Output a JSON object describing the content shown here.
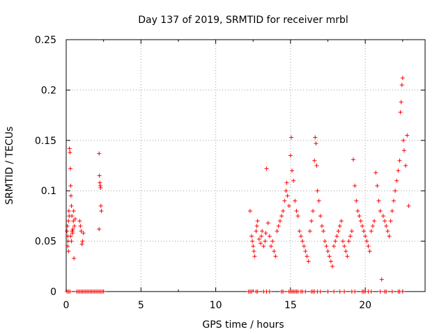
{
  "chart_data": {
    "type": "scatter",
    "title": "Day 137 of 2019, SRMTID for receiver mrbl",
    "xlabel": "GPS time / hours",
    "ylabel": "SRMTID / TECUs",
    "xlim": [
      0,
      24
    ],
    "ylim": [
      0,
      0.25
    ],
    "xticks": [
      0,
      5,
      10,
      15,
      20
    ],
    "yticks": [
      0,
      0.05,
      0.1,
      0.15,
      0.2,
      0.25
    ],
    "x_tick_labels": [
      "0",
      "5",
      "10",
      "15",
      "20"
    ],
    "y_tick_labels": [
      "0",
      "0.05",
      "0.1",
      "0.15",
      "0.2",
      "0.25"
    ],
    "grid": true,
    "marker": "+",
    "series": [
      {
        "name": "SRMTID",
        "color": "#ff0000",
        "points": [
          [
            0.05,
            0.06
          ],
          [
            0.08,
            0.065
          ],
          [
            0.1,
            0.055
          ],
          [
            0.12,
            0.05
          ],
          [
            0.15,
            0.07
          ],
          [
            0.18,
            0.08
          ],
          [
            0.2,
            0.075
          ],
          [
            0.22,
            0.142
          ],
          [
            0.25,
            0.138
          ],
          [
            0.28,
            0.122
          ],
          [
            0.3,
            0.105
          ],
          [
            0.32,
            0.095
          ],
          [
            0.35,
            0.085
          ],
          [
            0.38,
            0.075
          ],
          [
            0.4,
            0.06
          ],
          [
            0.42,
            0.058
          ],
          [
            0.45,
            0.062
          ],
          [
            0.48,
            0.07
          ],
          [
            0.5,
            0.08
          ],
          [
            0.52,
            0.033
          ],
          [
            0.55,
            0.065
          ],
          [
            0.6,
            0.072
          ],
          [
            0.1,
            0.045
          ],
          [
            0.15,
            0.04
          ],
          [
            0.3,
            0.055
          ],
          [
            0.35,
            0.05
          ],
          [
            0.4,
            0.06
          ],
          [
            0.9,
            0.07
          ],
          [
            0.95,
            0.065
          ],
          [
            1.0,
            0.06
          ],
          [
            1.05,
            0.047
          ],
          [
            1.1,
            0.05
          ],
          [
            1.15,
            0.058
          ],
          [
            2.2,
            0.137
          ],
          [
            2.22,
            0.115
          ],
          [
            2.25,
            0.108
          ],
          [
            2.28,
            0.105
          ],
          [
            2.3,
            0.103
          ],
          [
            2.32,
            0.085
          ],
          [
            2.35,
            0.08
          ],
          [
            2.2,
            0.062
          ],
          [
            12.3,
            0.08
          ],
          [
            12.4,
            0.055
          ],
          [
            12.45,
            0.05
          ],
          [
            12.5,
            0.045
          ],
          [
            12.55,
            0.04
          ],
          [
            12.6,
            0.035
          ],
          [
            12.7,
            0.06
          ],
          [
            12.75,
            0.065
          ],
          [
            12.8,
            0.07
          ],
          [
            12.9,
            0.052
          ],
          [
            13.0,
            0.048
          ],
          [
            13.05,
            0.055
          ],
          [
            13.1,
            0.06
          ],
          [
            13.2,
            0.045
          ],
          [
            13.3,
            0.05
          ],
          [
            13.35,
            0.058
          ],
          [
            13.4,
            0.122
          ],
          [
            13.5,
            0.068
          ],
          [
            13.6,
            0.055
          ],
          [
            13.7,
            0.045
          ],
          [
            13.8,
            0.05
          ],
          [
            13.9,
            0.04
          ],
          [
            14.0,
            0.035
          ],
          [
            14.1,
            0.06
          ],
          [
            14.2,
            0.065
          ],
          [
            14.3,
            0.07
          ],
          [
            14.4,
            0.075
          ],
          [
            14.5,
            0.08
          ],
          [
            14.6,
            0.09
          ],
          [
            14.7,
            0.1
          ],
          [
            14.75,
            0.108
          ],
          [
            14.8,
            0.095
          ],
          [
            14.9,
            0.085
          ],
          [
            15.0,
            0.135
          ],
          [
            15.05,
            0.153
          ],
          [
            15.1,
            0.12
          ],
          [
            15.2,
            0.11
          ],
          [
            15.3,
            0.09
          ],
          [
            15.4,
            0.08
          ],
          [
            15.5,
            0.075
          ],
          [
            15.6,
            0.06
          ],
          [
            15.7,
            0.055
          ],
          [
            15.8,
            0.05
          ],
          [
            15.9,
            0.045
          ],
          [
            16.0,
            0.04
          ],
          [
            16.1,
            0.035
          ],
          [
            16.2,
            0.03
          ],
          [
            16.3,
            0.06
          ],
          [
            16.4,
            0.07
          ],
          [
            16.5,
            0.08
          ],
          [
            16.6,
            0.13
          ],
          [
            16.65,
            0.153
          ],
          [
            16.7,
            0.147
          ],
          [
            16.75,
            0.125
          ],
          [
            16.8,
            0.1
          ],
          [
            16.9,
            0.09
          ],
          [
            17.0,
            0.075
          ],
          [
            17.1,
            0.065
          ],
          [
            17.2,
            0.06
          ],
          [
            17.3,
            0.05
          ],
          [
            17.4,
            0.045
          ],
          [
            17.5,
            0.04
          ],
          [
            17.6,
            0.035
          ],
          [
            17.7,
            0.03
          ],
          [
            17.8,
            0.025
          ],
          [
            17.9,
            0.045
          ],
          [
            18.0,
            0.05
          ],
          [
            18.1,
            0.055
          ],
          [
            18.2,
            0.06
          ],
          [
            18.3,
            0.065
          ],
          [
            18.4,
            0.07
          ],
          [
            18.5,
            0.05
          ],
          [
            18.6,
            0.045
          ],
          [
            18.7,
            0.04
          ],
          [
            18.8,
            0.035
          ],
          [
            18.9,
            0.05
          ],
          [
            19.0,
            0.055
          ],
          [
            19.1,
            0.06
          ],
          [
            19.2,
            0.131
          ],
          [
            19.3,
            0.105
          ],
          [
            19.4,
            0.09
          ],
          [
            19.5,
            0.08
          ],
          [
            19.6,
            0.075
          ],
          [
            19.7,
            0.07
          ],
          [
            19.8,
            0.065
          ],
          [
            19.9,
            0.06
          ],
          [
            20.0,
            0.055
          ],
          [
            20.1,
            0.05
          ],
          [
            20.2,
            0.045
          ],
          [
            20.3,
            0.04
          ],
          [
            20.4,
            0.06
          ],
          [
            20.5,
            0.065
          ],
          [
            20.6,
            0.07
          ],
          [
            20.7,
            0.118
          ],
          [
            20.8,
            0.105
          ],
          [
            20.9,
            0.09
          ],
          [
            21.0,
            0.08
          ],
          [
            21.1,
            0.012
          ],
          [
            21.2,
            0.075
          ],
          [
            21.3,
            0.07
          ],
          [
            21.4,
            0.065
          ],
          [
            21.5,
            0.06
          ],
          [
            21.6,
            0.055
          ],
          [
            21.7,
            0.07
          ],
          [
            21.8,
            0.08
          ],
          [
            21.9,
            0.09
          ],
          [
            22.0,
            0.1
          ],
          [
            22.1,
            0.11
          ],
          [
            22.2,
            0.12
          ],
          [
            22.3,
            0.13
          ],
          [
            22.35,
            0.178
          ],
          [
            22.4,
            0.188
          ],
          [
            22.45,
            0.205
          ],
          [
            22.5,
            0.212
          ],
          [
            22.55,
            0.15
          ],
          [
            22.6,
            0.14
          ],
          [
            22.7,
            0.125
          ],
          [
            22.8,
            0.155
          ],
          [
            22.9,
            0.085
          ]
        ],
        "zero_points_x": [
          0.05,
          0.15,
          0.25,
          0.7,
          0.8,
          0.9,
          1.0,
          1.1,
          1.2,
          1.3,
          1.4,
          1.5,
          1.6,
          1.7,
          1.8,
          1.9,
          2.0,
          2.1,
          2.2,
          2.3,
          2.4,
          2.5,
          12.2,
          12.3,
          12.4,
          12.7,
          12.8,
          13.2,
          13.4,
          13.6,
          14.4,
          14.5,
          14.9,
          15.0,
          15.1,
          15.2,
          15.3,
          15.4,
          15.5,
          15.7,
          15.8,
          16.0,
          16.4,
          16.5,
          16.6,
          16.8,
          17.0,
          17.5,
          17.9,
          18.3,
          18.6,
          19.1,
          19.3,
          19.8,
          19.9,
          20.0,
          20.2,
          20.4,
          21.0,
          21.3,
          21.4,
          21.8,
          22.2,
          22.3,
          22.5
        ]
      }
    ]
  }
}
